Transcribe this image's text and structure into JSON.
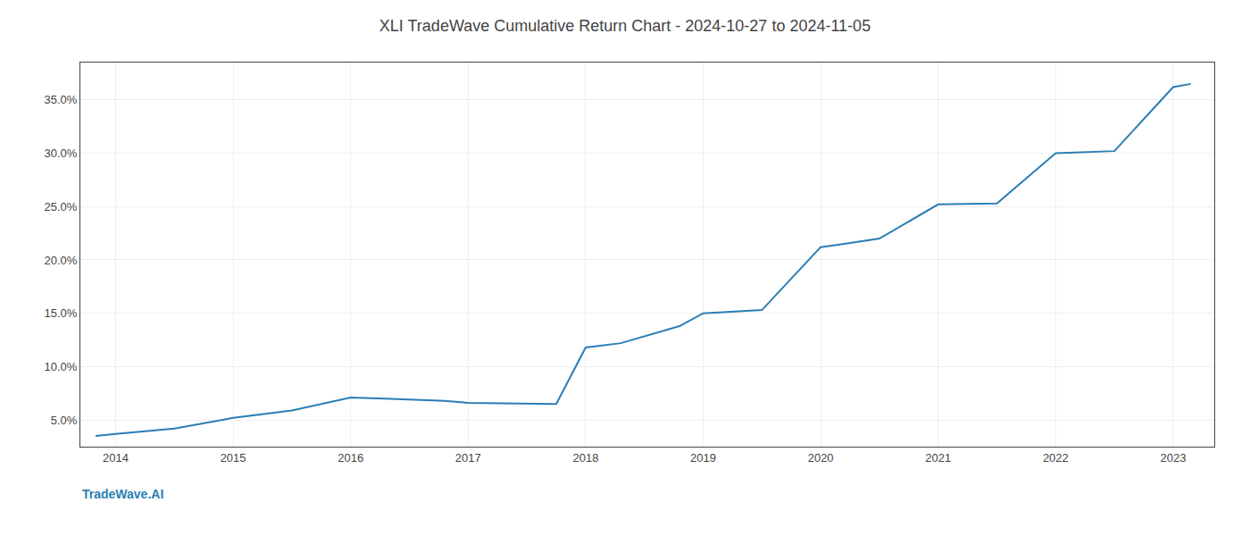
{
  "chart_data": {
    "type": "line",
    "title": "XLI TradeWave Cumulative Return Chart - 2024-10-27 to 2024-11-05",
    "annotations": [
      {
        "text": "TradeWave.AI"
      }
    ],
    "x": [
      2013.83,
      2014.0,
      2014.5,
      2015.0,
      2015.5,
      2016.0,
      2016.3,
      2016.8,
      2017.0,
      2017.5,
      2017.75,
      2018.0,
      2018.3,
      2018.8,
      2019.0,
      2019.5,
      2020.0,
      2020.2,
      2020.5,
      2021.0,
      2021.5,
      2022.0,
      2022.5,
      2023.0,
      2023.15
    ],
    "values": [
      3.5,
      3.7,
      4.2,
      5.2,
      5.9,
      7.1,
      7.0,
      6.8,
      6.6,
      6.5,
      6.5,
      11.8,
      12.2,
      13.8,
      15.0,
      15.3,
      21.2,
      21.5,
      22.0,
      25.2,
      25.3,
      30.0,
      30.2,
      36.2,
      36.5
    ],
    "color": "#2a7db5",
    "xlim": [
      2013.7,
      2023.35
    ],
    "xticks": [
      2014,
      2015,
      2016,
      2017,
      2018,
      2019,
      2020,
      2021,
      2022,
      2023
    ],
    "ylim": [
      2.5,
      38.5
    ],
    "yticks": [
      {
        "value": 5.0,
        "label": "5.0%"
      },
      {
        "value": 10.0,
        "label": "10.0%"
      },
      {
        "value": 15.0,
        "label": "15.0%"
      },
      {
        "value": 20.0,
        "label": "20.0%"
      },
      {
        "value": 25.0,
        "label": "25.0%"
      },
      {
        "value": 30.0,
        "label": "30.0%"
      },
      {
        "value": 35.0,
        "label": "35.0%"
      }
    ],
    "grid": true
  }
}
